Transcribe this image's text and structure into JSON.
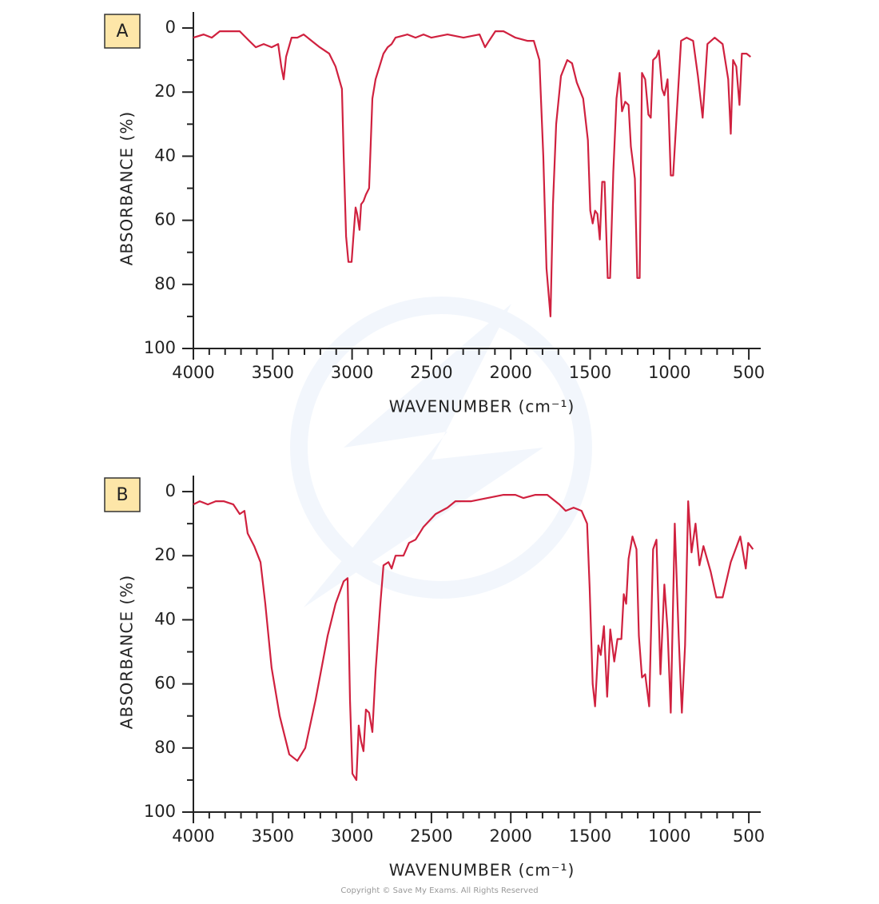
{
  "chart_data": [
    {
      "type": "line",
      "panel_label": "A",
      "ylabel": "ABSORBANCE (%)",
      "xlabel": "WAVENUMBER (cm⁻¹)",
      "color": "#d0213f",
      "xlim": [
        4000,
        425
      ],
      "ylim": [
        100,
        -5
      ],
      "xticks": [
        4000,
        3500,
        3000,
        2500,
        2000,
        1500,
        1000,
        500
      ],
      "yticks": [
        0,
        20,
        40,
        60,
        80,
        100
      ],
      "x": [
        4000,
        3935,
        3884,
        3834,
        3708,
        3648,
        3607,
        3557,
        3507,
        3466,
        3446,
        3431,
        3416,
        3381,
        3345,
        3305,
        3255,
        3204,
        3144,
        3104,
        3064,
        3053,
        3038,
        3023,
        3003,
        2993,
        2978,
        2968,
        2953,
        2943,
        2928,
        2913,
        2893,
        2872,
        2852,
        2802,
        2776,
        2751,
        2726,
        2651,
        2600,
        2550,
        2500,
        2399,
        2298,
        2197,
        2162,
        2137,
        2097,
        2046,
        1971,
        1896,
        1855,
        1820,
        1795,
        1775,
        1750,
        1734,
        1714,
        1684,
        1644,
        1614,
        1584,
        1544,
        1514,
        1499,
        1484,
        1469,
        1454,
        1439,
        1424,
        1409,
        1389,
        1374,
        1354,
        1334,
        1314,
        1299,
        1279,
        1258,
        1243,
        1218,
        1203,
        1188,
        1173,
        1153,
        1133,
        1118,
        1103,
        1082,
        1067,
        1047,
        1032,
        1012,
        992,
        977,
        952,
        927,
        892,
        851,
        821,
        791,
        761,
        715,
        665,
        630,
        614,
        599,
        579,
        559,
        544,
        514,
        489
      ],
      "values": [
        3,
        2,
        3,
        1,
        1,
        4,
        6,
        5,
        6,
        5,
        12,
        16,
        9,
        3,
        3,
        2,
        4,
        6,
        8,
        12,
        19,
        40,
        65,
        73,
        73,
        66,
        56,
        58,
        63,
        55,
        54,
        52,
        50,
        22,
        16,
        8,
        6,
        5,
        3,
        2,
        3,
        2,
        3,
        2,
        3,
        2,
        6,
        4,
        1,
        1,
        3,
        4,
        4,
        10,
        40,
        75,
        90,
        55,
        30,
        15,
        10,
        11,
        17,
        22,
        35,
        57,
        61,
        57,
        58,
        66,
        48,
        48,
        78,
        78,
        45,
        22,
        14,
        26,
        23,
        24,
        37,
        47,
        78,
        78,
        14,
        16,
        27,
        28,
        10,
        9,
        7,
        19,
        21,
        16,
        46,
        46,
        25,
        4,
        3,
        4,
        15,
        28,
        5,
        3,
        5,
        16,
        33,
        10,
        12,
        24,
        8,
        8,
        9
      ]
    },
    {
      "type": "line",
      "panel_label": "B",
      "ylabel": "ABSORBANCE (%)",
      "xlabel": "WAVENUMBER (cm⁻¹)",
      "color": "#d0213f",
      "xlim": [
        4000,
        425
      ],
      "ylim": [
        100,
        -5
      ],
      "xticks": [
        4000,
        3500,
        3000,
        2500,
        2000,
        1500,
        1000,
        500
      ],
      "yticks": [
        0,
        20,
        40,
        60,
        80,
        100
      ],
      "x": [
        4000,
        3960,
        3909,
        3859,
        3809,
        3748,
        3708,
        3678,
        3658,
        3617,
        3577,
        3547,
        3507,
        3456,
        3396,
        3345,
        3295,
        3230,
        3154,
        3104,
        3053,
        3028,
        3013,
        2998,
        2973,
        2958,
        2943,
        2928,
        2913,
        2893,
        2872,
        2852,
        2822,
        2802,
        2771,
        2751,
        2726,
        2676,
        2641,
        2600,
        2550,
        2474,
        2399,
        2349,
        2248,
        2147,
        2046,
        1971,
        1920,
        1845,
        1770,
        1694,
        1654,
        1604,
        1554,
        1519,
        1503,
        1484,
        1469,
        1448,
        1433,
        1413,
        1393,
        1373,
        1348,
        1328,
        1303,
        1288,
        1273,
        1258,
        1233,
        1208,
        1193,
        1173,
        1153,
        1128,
        1103,
        1082,
        1057,
        1032,
        1012,
        992,
        967,
        942,
        922,
        902,
        882,
        861,
        836,
        811,
        786,
        740,
        705,
        665,
        614,
        554,
        519,
        504,
        474
      ],
      "values": [
        4,
        3,
        4,
        3,
        3,
        4,
        7,
        6,
        13,
        17,
        22,
        35,
        55,
        70,
        82,
        84,
        80,
        65,
        45,
        35,
        28,
        27,
        65,
        88,
        90,
        73,
        78,
        81,
        68,
        69,
        75,
        56,
        35,
        23,
        22,
        24,
        20,
        20,
        16,
        15,
        11,
        7,
        5,
        3,
        3,
        2,
        1,
        1,
        2,
        1,
        1,
        4,
        6,
        5,
        6,
        10,
        30,
        60,
        67,
        48,
        51,
        42,
        64,
        43,
        53,
        46,
        46,
        32,
        35,
        21,
        14,
        18,
        45,
        58,
        57,
        67,
        18,
        15,
        57,
        29,
        43,
        69,
        10,
        45,
        69,
        48,
        3,
        19,
        10,
        23,
        17,
        25,
        33,
        33,
        22,
        14,
        24,
        16,
        18
      ]
    }
  ],
  "copyright": "Copyright © Save My Exams. All Rights Reserved"
}
